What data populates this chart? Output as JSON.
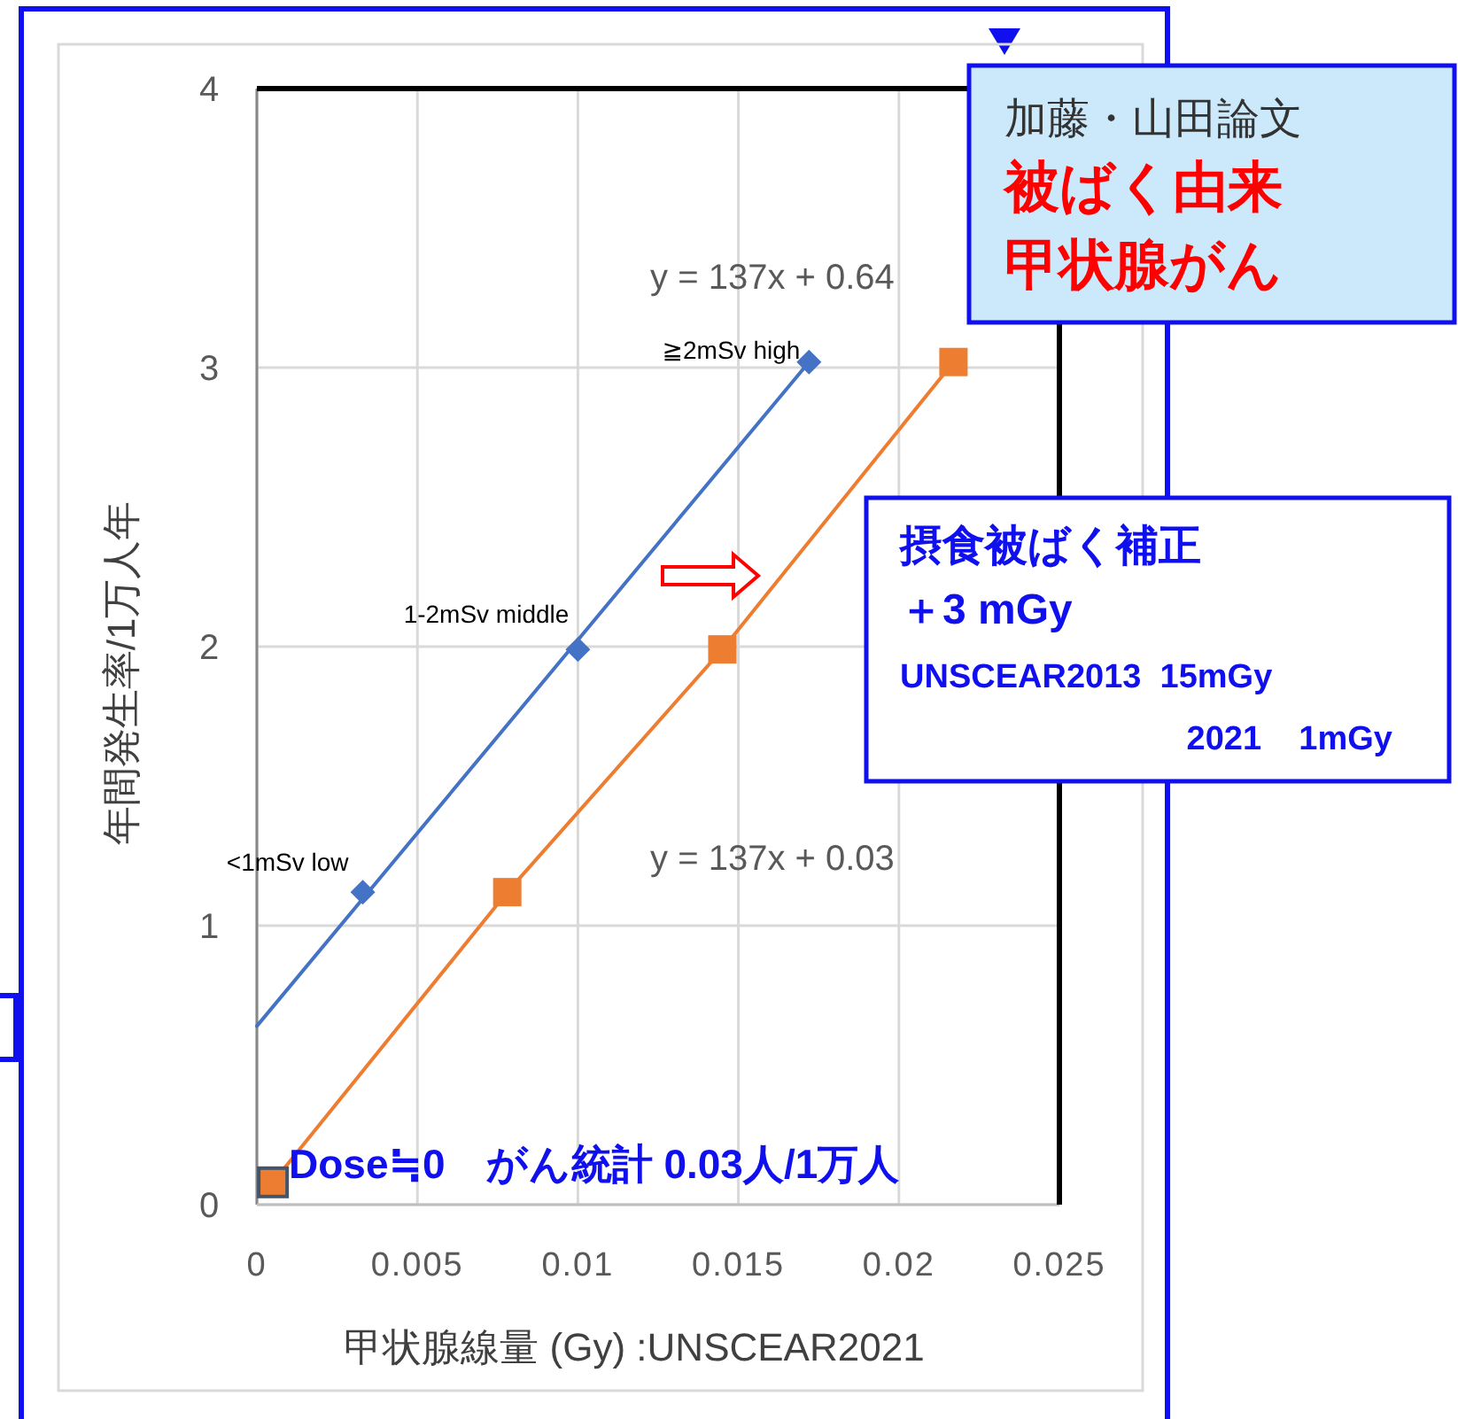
{
  "chart_data": {
    "type": "scatter",
    "xlabel": "甲状腺線量 (Gy) :UNSCEAR2021",
    "ylabel": "年間発生率/1万人年",
    "xlim": [
      0,
      0.025
    ],
    "xticks": [
      0,
      0.005,
      0.01,
      0.015,
      0.02,
      0.025
    ],
    "ylim": [
      0,
      4
    ],
    "yticks": [
      0,
      1,
      2,
      3,
      4
    ],
    "grid": true,
    "series": [
      {
        "type": "line",
        "color": "#4472c4",
        "marker": "none",
        "x": [
          0,
          0.0172
        ],
        "values": [
          0.64,
          3.02
        ]
      },
      {
        "color": "#4472c4",
        "marker": "diamond",
        "x": [
          0.0033,
          0.01,
          0.0172
        ],
        "values": [
          1.12,
          1.99,
          3.02
        ]
      },
      {
        "type": "line",
        "color": "#ed7d31",
        "marker": "square",
        "x": [
          0.0005,
          0.0078,
          0.0145,
          0.0217
        ],
        "values": [
          0.08,
          1.12,
          1.99,
          3.02
        ]
      }
    ],
    "annotations": [
      "y = 137x + 0.64",
      "y = 137x + 0.03",
      {
        "text": "<1mSv low",
        "x": 0.0033,
        "y": 1.12
      },
      {
        "text": "1-2mSv middle",
        "x": 0.01,
        "y": 1.99
      },
      {
        "text": "≧2mSv high",
        "x": 0.0172,
        "y": 3.02
      },
      "加藤・山田論文",
      "被ばく由来",
      "甲状腺がん",
      "摂食被ばく補正",
      "＋3 mGy",
      "UNSCEAR2013  15mGy",
      "2021    1mGy",
      "Dose≒0　がん統計 0.03人/1万人"
    ]
  }
}
